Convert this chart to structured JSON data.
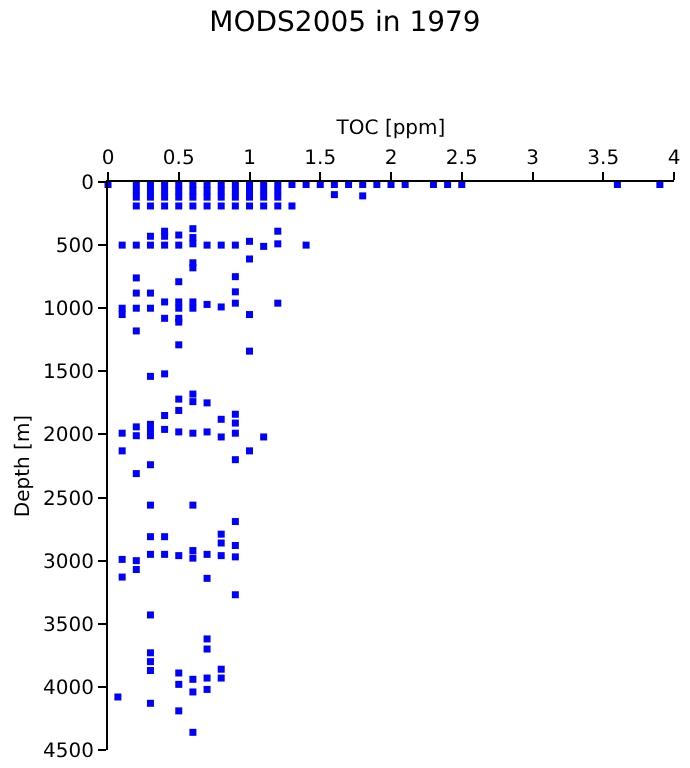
{
  "chart_data": {
    "type": "scatter",
    "title": "MODS2005 in 1979",
    "xlabel": "TOC [ppm]",
    "ylabel": "Depth [m]",
    "xlim": [
      0,
      4
    ],
    "xticks": [
      0,
      0.5,
      1,
      1.5,
      2,
      2.5,
      3,
      3.5,
      4
    ],
    "ylim": [
      4500,
      0
    ],
    "yticks": [
      0,
      500,
      1000,
      1500,
      2000,
      2500,
      3000,
      3500,
      4000,
      4500
    ],
    "grid": false,
    "marker": "square",
    "series": [
      {
        "color": "#0000ff",
        "x": [
          0,
          0.2,
          0.3,
          0.4,
          0.5,
          0.6,
          0.7,
          0.8,
          0.9,
          1,
          1.1,
          1.2,
          1.3,
          1.4,
          1.5,
          1.6,
          1.7,
          1.8,
          1.9,
          2,
          2.1,
          2.3,
          2.4,
          2.5,
          3.6,
          3.9,
          0.2,
          0.3,
          0.4,
          0.5,
          0.6,
          0.7,
          0.8,
          0.9,
          1,
          1.1,
          1.2,
          0.2,
          0.3,
          0.4,
          0.5,
          0.6,
          0.7,
          0.8,
          0.9,
          1,
          1.1,
          1.2,
          1.6,
          1.8,
          0.2,
          0.3,
          0.4,
          0.5,
          0.6,
          0.7,
          0.8,
          0.9,
          1,
          1.1,
          1.2,
          1.3,
          0.1,
          0.2,
          0.3,
          0.3,
          0.4,
          0.4,
          0.4,
          0.5,
          0.5,
          0.6,
          0.6,
          0.6,
          0.6,
          0.6,
          0.7,
          0.8,
          0.9,
          1,
          1,
          1.1,
          1.2,
          1.2,
          1.4,
          0.1,
          0.1,
          0.2,
          0.2,
          0.2,
          0.2,
          0.3,
          0.3,
          0.4,
          0.4,
          0.5,
          0.5,
          0.5,
          0.5,
          0.6,
          0.6,
          0.7,
          0.8,
          0.9,
          0.9,
          0.9,
          1,
          1.2,
          0.5,
          0.5,
          1,
          0.3,
          0.4,
          0.5,
          0.5,
          0.6,
          0.6,
          0.7,
          0.8,
          0.9,
          0.9,
          0.9,
          0.9,
          1,
          1.1,
          0.1,
          0.1,
          0.2,
          0.2,
          0.3,
          0.3,
          0.3,
          0.3,
          0.2,
          0.3,
          0.6,
          0.4,
          0.4,
          0.5,
          0.6,
          0.7,
          0.8,
          0.9,
          0.8,
          0.8,
          0.3,
          0.4,
          0.3,
          0.4,
          0.9,
          0.9,
          0.5,
          0.6,
          0.6,
          0.7,
          0.8,
          0.1,
          0.2,
          0.1,
          0.2,
          0.7,
          0.9,
          0.3,
          0.3,
          0.7,
          0.7,
          0.3,
          0.3,
          0.3,
          0.5,
          0.5,
          0.5,
          0.6,
          0.6,
          0.6,
          0.7,
          0.7,
          0.8,
          0.8,
          0.07
        ],
        "values": [
          20,
          20,
          20,
          20,
          20,
          20,
          20,
          20,
          20,
          20,
          20,
          20,
          20,
          20,
          20,
          20,
          20,
          20,
          20,
          20,
          20,
          20,
          20,
          20,
          20,
          20,
          70,
          70,
          70,
          70,
          70,
          70,
          70,
          70,
          70,
          70,
          70,
          120,
          120,
          120,
          120,
          120,
          120,
          120,
          120,
          120,
          120,
          120,
          100,
          110,
          190,
          190,
          190,
          190,
          190,
          190,
          190,
          190,
          190,
          190,
          190,
          190,
          500,
          500,
          500,
          430,
          390,
          430,
          500,
          420,
          500,
          370,
          440,
          490,
          640,
          680,
          500,
          500,
          500,
          470,
          610,
          510,
          390,
          490,
          500,
          1000,
          1050,
          760,
          880,
          1000,
          1180,
          880,
          1000,
          950,
          1080,
          790,
          950,
          1000,
          1080,
          950,
          1000,
          970,
          990,
          750,
          870,
          960,
          1050,
          960,
          1110,
          1290,
          1340,
          1540,
          1520,
          1720,
          1810,
          1680,
          1740,
          1750,
          1880,
          1840,
          1910,
          1990,
          2200,
          2130,
          2020,
          1990,
          2130,
          1940,
          2010,
          1920,
          1960,
          2010,
          2240,
          2310,
          2560,
          2560,
          1850,
          1960,
          1980,
          1990,
          1980,
          2020,
          2690,
          2790,
          2860,
          2810,
          2810,
          2950,
          2950,
          2880,
          2970,
          2960,
          2920,
          2980,
          2950,
          2960,
          2990,
          3000,
          3130,
          3070,
          3140,
          3270,
          3430,
          3730,
          3620,
          3700,
          3800,
          3870,
          4130,
          3890,
          3980,
          4190,
          3940,
          4040,
          4360,
          3930,
          4020,
          3860,
          3930,
          4080
        ]
      }
    ]
  }
}
